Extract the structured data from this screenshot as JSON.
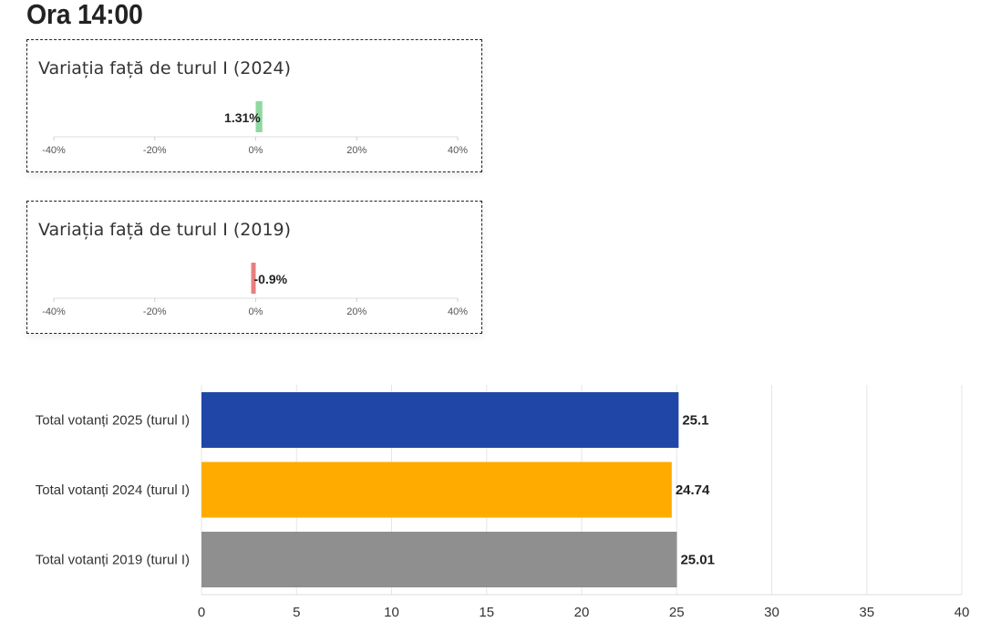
{
  "title": "Ora 14:00",
  "colors": {
    "positive": "#8fd8a0",
    "negative": "#e87f7f",
    "blue": "#2046a7",
    "orange": "#ffab00",
    "gray": "#8f8f8f",
    "grid": "#e6e6e6"
  },
  "chart_data": [
    {
      "type": "bar",
      "title": "Variația față de turul I (2024)",
      "values": [
        1.31
      ],
      "value_label": "1.31%",
      "xlim": [
        -40,
        40
      ],
      "ticks": [
        "-40%",
        "-20%",
        "0%",
        "20%",
        "40%"
      ]
    },
    {
      "type": "bar",
      "title": "Variația față de turul I (2019)",
      "values": [
        -0.9
      ],
      "value_label": "-0.9%",
      "xlim": [
        -40,
        40
      ],
      "ticks": [
        "-40%",
        "-20%",
        "0%",
        "20%",
        "40%"
      ]
    },
    {
      "type": "bar",
      "orientation": "horizontal",
      "categories": [
        "Total votanți 2025 (turul I)",
        "Total votanți 2024 (turul I)",
        "Total votanți 2019 (turul I)"
      ],
      "values": [
        25.1,
        24.74,
        25.01
      ],
      "value_labels": [
        "25.1",
        "24.74",
        "25.01"
      ],
      "xlim": [
        0,
        40
      ],
      "ticks": [
        "0",
        "5",
        "10",
        "15",
        "20",
        "25",
        "30",
        "35",
        "40"
      ],
      "grid": true
    }
  ]
}
